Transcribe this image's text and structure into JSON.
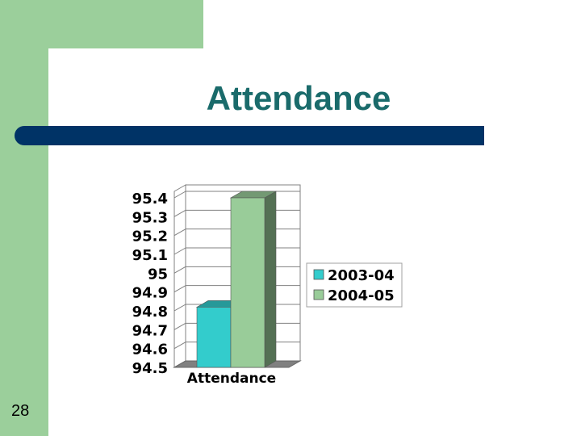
{
  "slide": {
    "title": "Attendance",
    "page_number": "28"
  },
  "colors": {
    "band": "#9bcf9b",
    "title_rule": "#003366",
    "title_text": "#1a6b6b"
  },
  "chart_data": {
    "type": "bar",
    "style": "3d",
    "categories": [
      "Attendance"
    ],
    "series": [
      {
        "name": "2003-04",
        "values": [
          94.82
        ],
        "color": "#33cccc"
      },
      {
        "name": "2004-05",
        "values": [
          95.4
        ],
        "color": "#99cc99"
      }
    ],
    "y_ticks": [
      "95.4",
      "95.3",
      "95.2",
      "95.1",
      "95",
      "94.9",
      "94.8",
      "94.7",
      "94.6",
      "94.5"
    ],
    "ylim": [
      94.5,
      95.4
    ],
    "grid": true,
    "legend_position": "right"
  }
}
